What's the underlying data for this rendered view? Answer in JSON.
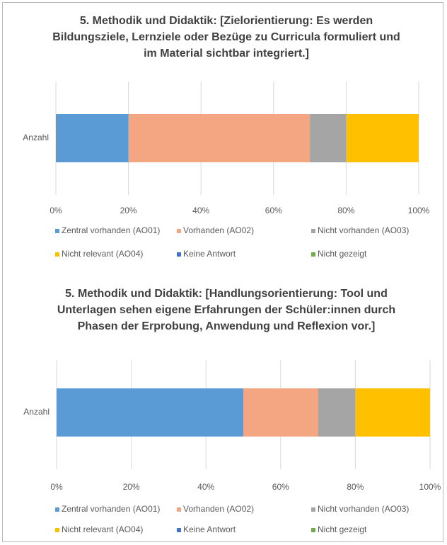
{
  "chart_data": [
    {
      "type": "stacked-bar-horizontal",
      "title": "5. Methodik und Didaktik: [Zielorientierung: Es werden Bildungsziele, Lernziele oder Bezüge zu Curricula formuliert und im Material sichtbar integriert.]",
      "categories": [
        "Anzahl"
      ],
      "series": [
        {
          "name": "Zentral vorhanden (AO01)",
          "color": "#5b9bd5",
          "values": [
            20
          ]
        },
        {
          "name": "Vorhanden (AO02)",
          "color": "#f4a582",
          "values": [
            50
          ]
        },
        {
          "name": "Nicht vorhanden (AO03)",
          "color": "#a5a5a5",
          "values": [
            10
          ]
        },
        {
          "name": "Nicht relevant (AO04)",
          "color": "#ffc000",
          "values": [
            20
          ]
        },
        {
          "name": "Keine Antwort",
          "color": "#4472c4",
          "values": [
            0
          ]
        },
        {
          "name": "Nicht gezeigt",
          "color": "#70ad47",
          "values": [
            0
          ]
        }
      ],
      "xlim": [
        0,
        100
      ],
      "xticks": [
        {
          "value": 0,
          "label": "0%"
        },
        {
          "value": 20,
          "label": "20%"
        },
        {
          "value": 40,
          "label": "40%"
        },
        {
          "value": 60,
          "label": "60%"
        },
        {
          "value": 80,
          "label": "80%"
        },
        {
          "value": 100,
          "label": "100%"
        }
      ],
      "grid": true,
      "legend": "bottom"
    },
    {
      "type": "stacked-bar-horizontal",
      "title": "5. Methodik und Didaktik: [Handlungsorientierung: Tool und Unterlagen sehen eigene Erfahrungen der Schüler:innen durch Phasen der Erprobung, Anwendung und Reflexion vor.]",
      "categories": [
        "Anzahl"
      ],
      "series": [
        {
          "name": "Zentral vorhanden (AO01)",
          "color": "#5b9bd5",
          "values": [
            50
          ]
        },
        {
          "name": "Vorhanden (AO02)",
          "color": "#f4a582",
          "values": [
            20
          ]
        },
        {
          "name": "Nicht vorhanden (AO03)",
          "color": "#a5a5a5",
          "values": [
            10
          ]
        },
        {
          "name": "Nicht relevant (AO04)",
          "color": "#ffc000",
          "values": [
            20
          ]
        },
        {
          "name": "Keine Antwort",
          "color": "#4472c4",
          "values": [
            0
          ]
        },
        {
          "name": "Nicht gezeigt",
          "color": "#70ad47",
          "values": [
            0
          ]
        }
      ],
      "xlim": [
        0,
        100
      ],
      "xticks": [
        {
          "value": 0,
          "label": "0%"
        },
        {
          "value": 20,
          "label": "20%"
        },
        {
          "value": 40,
          "label": "40%"
        },
        {
          "value": 60,
          "label": "60%"
        },
        {
          "value": 80,
          "label": "80%"
        },
        {
          "value": 100,
          "label": "100%"
        }
      ],
      "grid": true,
      "legend": "bottom"
    }
  ]
}
